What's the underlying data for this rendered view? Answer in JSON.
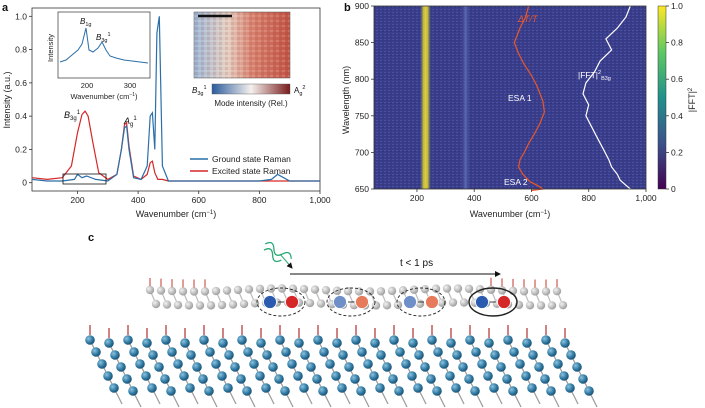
{
  "panels": {
    "a": {
      "letter": "a",
      "ylabel": "Intensity (a.u.)",
      "xlabel": "Wavenumber (cm",
      "xlabel_sup": "−1",
      "xlabel_close": ")",
      "xticks": [
        "200",
        "400",
        "600",
        "800",
        "1,000"
      ],
      "yticks": [
        "0",
        "0.2",
        "0.4",
        "0.6",
        "0.8",
        "1.0"
      ],
      "legend": [
        "Ground state Raman",
        "Excited state Raman"
      ],
      "colors": {
        "ground": "#2b6fa8",
        "excited": "#d62728"
      },
      "labels": {
        "b3g": "B",
        "b3g_sub": "3g",
        "b3g_sup": "1",
        "ag": "A",
        "ag_sub": "g",
        "ag_sup": "1"
      },
      "inset": {
        "ylabel": "Intensity",
        "xlabel": "Wavenumber (cm",
        "xlabel_sup": "−1",
        "xlabel_close": ")",
        "xticks": [
          "200",
          "300"
        ],
        "labels": {
          "b1g": "B",
          "b1g_sub": "1g",
          "b3g": "B",
          "b3g_sub": "3g",
          "b3g_sup": "1"
        }
      },
      "map_inset": {
        "colorbar_left": "B",
        "colorbar_left_sub": "3g",
        "colorbar_left_sup": "1",
        "colorbar_right": "A",
        "colorbar_right_sub": "g",
        "colorbar_right_sup": "2",
        "colorbar_label": "Mode intensity (Rel.)"
      }
    },
    "b": {
      "letter": "b",
      "ylabel": "Wavelength (nm)",
      "xlabel": "Wavenumber (cm",
      "xlabel_sup": "−1",
      "xlabel_close": ")",
      "xticks": [
        "200",
        "400",
        "600",
        "800",
        "1,000"
      ],
      "yticks": [
        "650",
        "700",
        "750",
        "800",
        "850",
        "900"
      ],
      "colorbar_ticks": [
        "0",
        "0.2",
        "0.4",
        "0.6",
        "0.8",
        "1.0"
      ],
      "colorbar_label": "|FFT|",
      "colorbar_label_sup": "2",
      "annotations": {
        "dtt": "ΔT/T",
        "fft": "|FFT|",
        "fft_sub": "B3g",
        "fft_sup": "2",
        "esa1": "ESA 1",
        "esa2": "ESA 2"
      },
      "colors": {
        "dtt": "#e8572a",
        "fft": "#ffffff"
      }
    },
    "c": {
      "letter": "c",
      "time_label": "t < 1 ps"
    }
  },
  "chart_data": [
    {
      "type": "line",
      "panel": "a",
      "xlabel": "Wavenumber (cm−1)",
      "ylabel": "Intensity (a.u.)",
      "xlim": [
        50,
        1000
      ],
      "ylim": [
        -0.05,
        1.05
      ],
      "series": [
        {
          "name": "Ground state Raman",
          "x": [
            50,
            100,
            150,
            190,
            200,
            215,
            230,
            260,
            300,
            330,
            345,
            355,
            362,
            370,
            385,
            410,
            430,
            440,
            447,
            455,
            462,
            470,
            480,
            500,
            550,
            600,
            650,
            700,
            750,
            800,
            840,
            860,
            880,
            900,
            950,
            1000
          ],
          "y": [
            0.02,
            0.01,
            0.01,
            0.02,
            0.05,
            0.03,
            0.04,
            0.02,
            0.01,
            0.05,
            0.2,
            0.33,
            0.34,
            0.2,
            0.03,
            0.02,
            0.1,
            0.4,
            0.42,
            0.2,
            0.9,
            1.0,
            0.1,
            0.01,
            0.01,
            0.01,
            0.01,
            0.01,
            0.01,
            0.01,
            0.02,
            0.05,
            0.03,
            0.01,
            0.01,
            0.01
          ]
        },
        {
          "name": "Excited state Raman",
          "x": [
            50,
            100,
            150,
            180,
            200,
            215,
            225,
            235,
            250,
            270,
            300,
            330,
            345,
            355,
            362,
            370,
            385,
            410,
            430,
            440,
            447,
            455,
            465,
            480,
            500,
            550,
            600,
            650,
            700,
            750,
            800,
            850,
            900,
            950,
            1000
          ],
          "y": [
            0.03,
            0.02,
            0.03,
            0.1,
            0.3,
            0.41,
            0.43,
            0.4,
            0.25,
            0.06,
            0.02,
            0.05,
            0.2,
            0.35,
            0.36,
            0.22,
            0.04,
            0.02,
            0.05,
            0.12,
            0.13,
            0.06,
            0.02,
            0.02,
            0.01,
            0.01,
            0.01,
            0.01,
            0.01,
            0.01,
            0.01,
            0.01,
            0.01,
            0.01,
            0.01
          ]
        }
      ]
    },
    {
      "type": "heatmap",
      "panel": "b",
      "xlabel": "Wavenumber (cm−1)",
      "ylabel": "Wavelength (nm)",
      "xlim": [
        50,
        1000
      ],
      "ylim": [
        650,
        900
      ],
      "bright_columns": [
        230,
        370
      ],
      "dtt_trace": {
        "name": "ΔT/T",
        "x": [
          590,
          580,
          560,
          540,
          555,
          575,
          600,
          620,
          640,
          645,
          630,
          610,
          590,
          575,
          560,
          555,
          570,
          595,
          620,
          640,
          600
        ],
        "y": [
          900,
          885,
          870,
          850,
          835,
          820,
          805,
          790,
          770,
          755,
          740,
          725,
          712,
          700,
          690,
          680,
          670,
          660,
          655,
          650,
          648
        ]
      },
      "fft_trace": {
        "name": "|FFT|2 B3g",
        "x": [
          945,
          930,
          900,
          860,
          880,
          840,
          820,
          790,
          780,
          800,
          790,
          810,
          830,
          850,
          870,
          880,
          900,
          910,
          930,
          945,
          960
        ],
        "y": [
          900,
          885,
          870,
          855,
          840,
          825,
          810,
          795,
          780,
          765,
          750,
          735,
          720,
          705,
          690,
          680,
          670,
          662,
          655,
          650,
          648
        ]
      }
    }
  ]
}
